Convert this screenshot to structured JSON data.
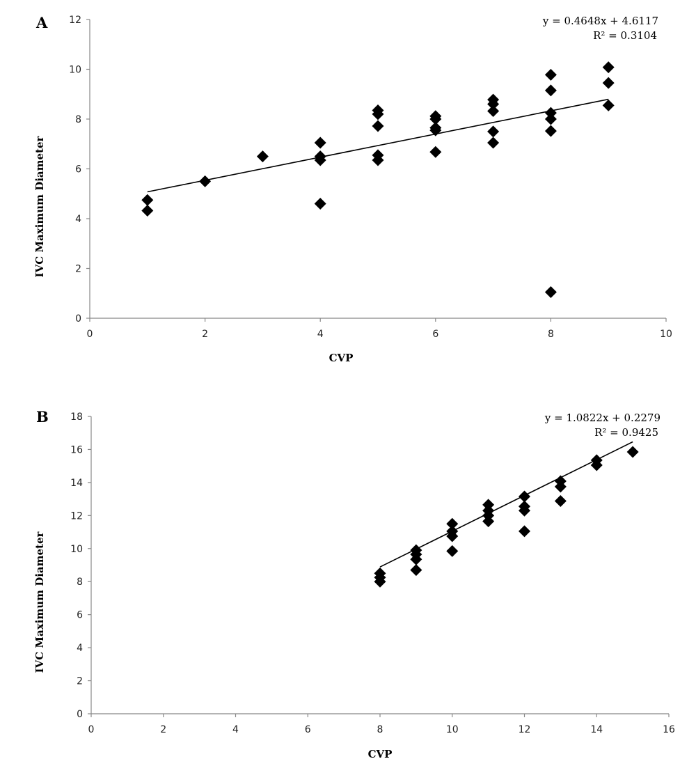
{
  "chart_data": [
    {
      "type": "scatter",
      "panel": "A",
      "xlabel": "CVP",
      "ylabel": "IVC Maximum Diameter",
      "xlim": [
        0,
        10
      ],
      "ylim": [
        0,
        12
      ],
      "xticks": [
        0,
        2,
        4,
        6,
        8,
        10
      ],
      "yticks": [
        0,
        2,
        4,
        6,
        8,
        10,
        12
      ],
      "grid": false,
      "equation": "y = 0.4648x + 4.6117",
      "r_squared": "R² = 0.3104",
      "trendline": {
        "slope": 0.4648,
        "intercept": 4.6117,
        "x_range": [
          1,
          9
        ]
      },
      "points": [
        [
          1,
          4.75
        ],
        [
          1,
          4.32
        ],
        [
          2,
          5.5
        ],
        [
          3,
          6.5
        ],
        [
          4,
          7.05
        ],
        [
          4,
          6.5
        ],
        [
          4,
          6.35
        ],
        [
          4,
          4.6
        ],
        [
          5,
          8.35
        ],
        [
          5,
          8.2
        ],
        [
          5,
          7.72
        ],
        [
          5,
          6.55
        ],
        [
          5,
          6.35
        ],
        [
          6,
          8.12
        ],
        [
          6,
          8.0
        ],
        [
          6,
          7.65
        ],
        [
          6,
          7.55
        ],
        [
          6,
          6.68
        ],
        [
          7,
          8.78
        ],
        [
          7,
          8.6
        ],
        [
          7,
          8.32
        ],
        [
          7,
          7.5
        ],
        [
          7,
          7.05
        ],
        [
          8,
          9.78
        ],
        [
          8,
          9.15
        ],
        [
          8,
          8.25
        ],
        [
          8,
          8.0
        ],
        [
          8,
          7.52
        ],
        [
          8,
          1.05
        ],
        [
          9,
          10.08
        ],
        [
          9,
          9.45
        ],
        [
          9,
          8.55
        ]
      ]
    },
    {
      "type": "scatter",
      "panel": "B",
      "xlabel": "CVP",
      "ylabel": "IVC Maximum Diameter",
      "xlim": [
        0,
        16
      ],
      "ylim": [
        0,
        18
      ],
      "xticks": [
        0,
        2,
        4,
        6,
        8,
        10,
        12,
        14,
        16
      ],
      "yticks": [
        0,
        2,
        4,
        6,
        8,
        10,
        12,
        14,
        16,
        18
      ],
      "grid": false,
      "equation": "y = 1.0822x + 0.2279",
      "r_squared": "R² = 0.9425",
      "trendline": {
        "slope": 1.0822,
        "intercept": 0.2279,
        "x_range": [
          8,
          15
        ]
      },
      "points": [
        [
          8,
          8.5
        ],
        [
          8,
          8.25
        ],
        [
          8,
          8.0
        ],
        [
          9,
          9.9
        ],
        [
          9,
          9.65
        ],
        [
          9,
          9.35
        ],
        [
          9,
          8.7
        ],
        [
          10,
          11.5
        ],
        [
          10,
          11.05
        ],
        [
          10,
          10.75
        ],
        [
          10,
          9.85
        ],
        [
          11,
          12.65
        ],
        [
          11,
          12.3
        ],
        [
          11,
          12.0
        ],
        [
          11,
          11.65
        ],
        [
          12,
          13.15
        ],
        [
          12,
          12.55
        ],
        [
          12,
          12.3
        ],
        [
          12,
          11.05
        ],
        [
          13,
          14.08
        ],
        [
          13,
          13.75
        ],
        [
          13,
          12.88
        ],
        [
          14,
          15.35
        ],
        [
          14,
          15.05
        ],
        [
          15,
          15.85
        ]
      ]
    }
  ]
}
